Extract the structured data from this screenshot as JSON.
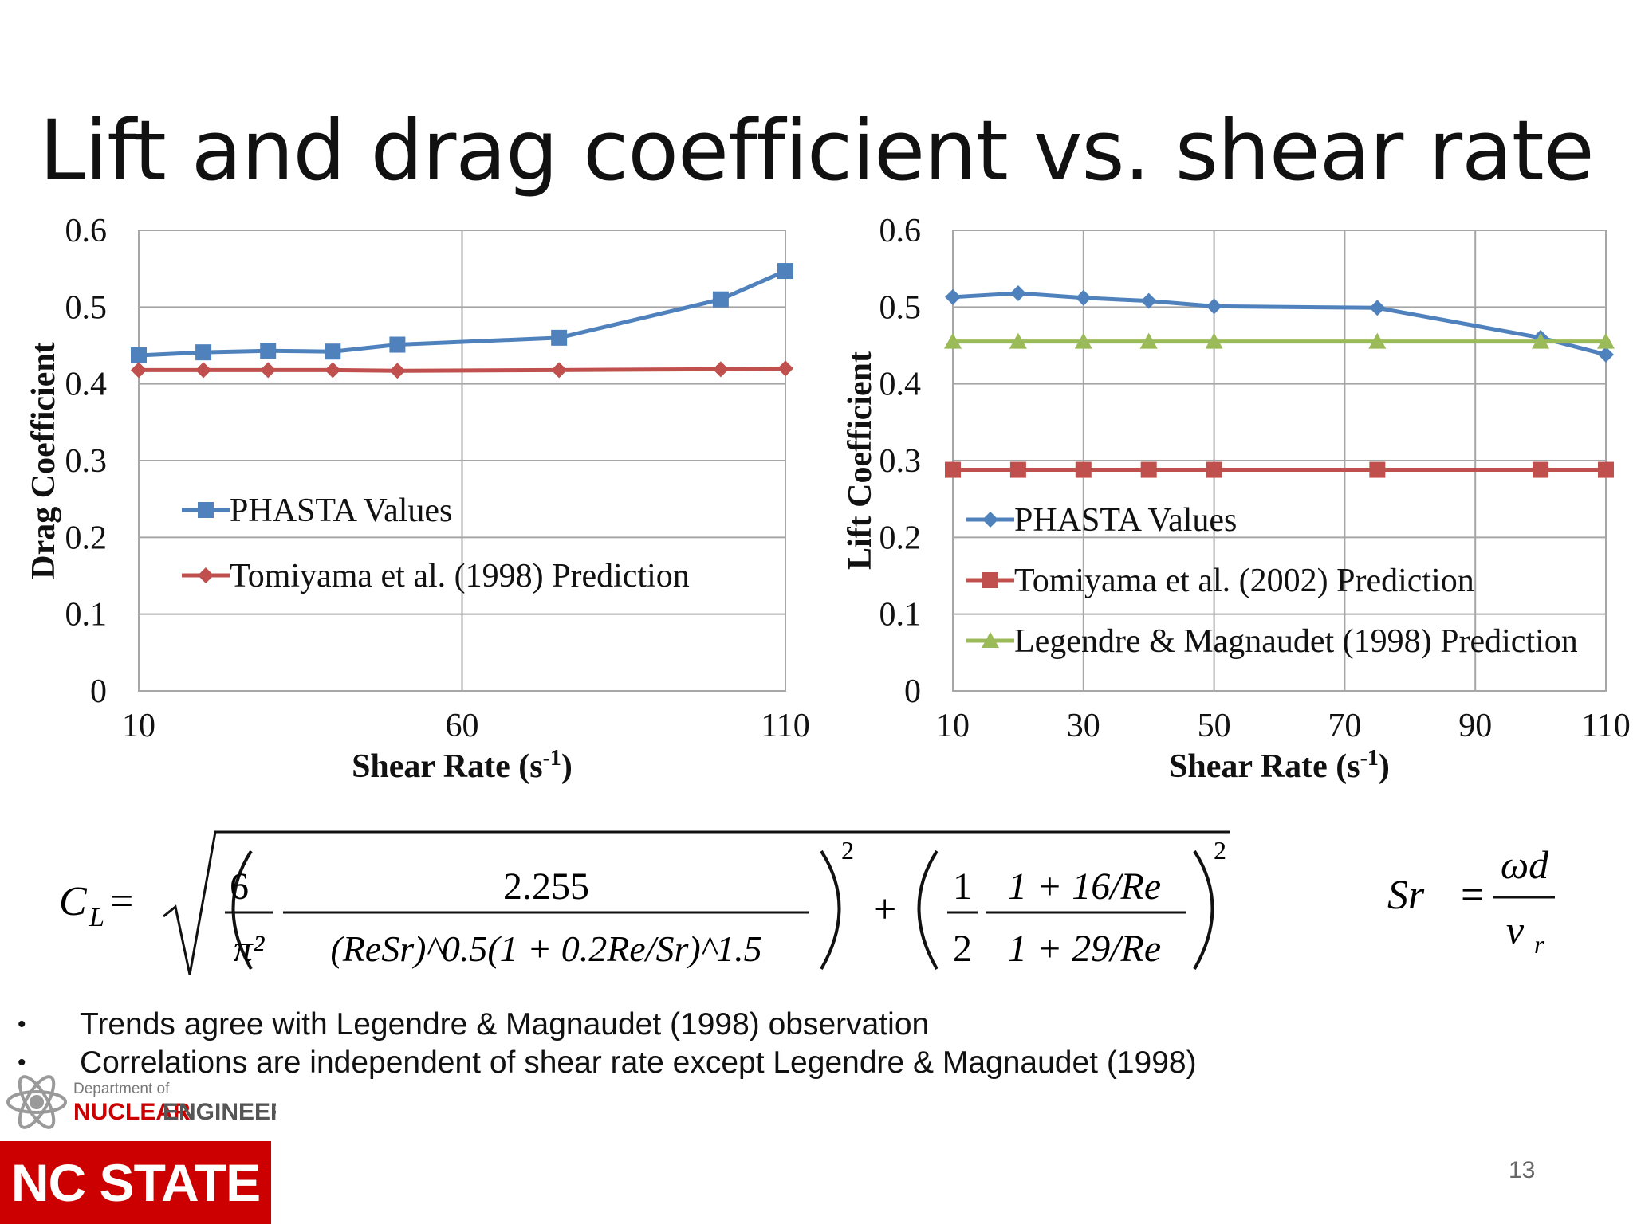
{
  "slide": {
    "title": "Lift and drag coefficient vs. shear rate",
    "page_number": "13",
    "bullets": [
      "Trends agree with Legendre & Magnaudet (1998) observation",
      "Correlations are independent of shear rate except Legendre & Magnaudet (1998)"
    ],
    "footer": {
      "department_line1": "Department of",
      "department_line2a": "NUCLEAR",
      "department_line2b": "ENGINEERING",
      "university": "NC STATE"
    },
    "formula": {
      "lhs": "C",
      "lhs_sub": "L",
      "term1_num_left": "6",
      "term1_den_left": "π²",
      "term1_num_right": "2.255",
      "term1_den_right": "(ReSr)^0.5(1 + 0.2Re/Sr)^1.5",
      "term2_num_left": "1",
      "term2_den_left": "2",
      "term2_num_right": "1 + 16/Re",
      "term2_den_right": "1 + 29/Re",
      "exponent": "2",
      "sr_lhs": "Sr",
      "sr_num": "ωd",
      "sr_den": "v",
      "sr_den_sub": "r"
    }
  },
  "chart_data": [
    {
      "type": "line",
      "xlabel": "Shear Rate (s-1)",
      "ylabel": "Drag Coefficient",
      "xlim": [
        10,
        110
      ],
      "ylim": [
        0,
        0.6
      ],
      "xticks": [
        10,
        60,
        110
      ],
      "yticks": [
        0,
        0.1,
        0.2,
        0.3,
        0.4,
        0.5,
        0.6
      ],
      "grid": true,
      "legend": "center-left",
      "series": [
        {
          "name": "PHASTA Values",
          "marker": "square",
          "color": "#4f81bd",
          "x": [
            10,
            20,
            30,
            40,
            50,
            75,
            100,
            110
          ],
          "y": [
            0.437,
            0.441,
            0.443,
            0.442,
            0.451,
            0.46,
            0.51,
            0.547
          ]
        },
        {
          "name": "Tomiyama et al. (1998) Prediction",
          "marker": "diamond",
          "color": "#c0504d",
          "x": [
            10,
            20,
            30,
            40,
            50,
            75,
            100,
            110
          ],
          "y": [
            0.418,
            0.418,
            0.418,
            0.418,
            0.417,
            0.418,
            0.419,
            0.42
          ]
        }
      ]
    },
    {
      "type": "line",
      "xlabel": "Shear Rate (s-1)",
      "ylabel": "Lift Coefficient",
      "xlim": [
        10,
        110
      ],
      "ylim": [
        0,
        0.6
      ],
      "xticks": [
        10,
        30,
        50,
        70,
        90,
        110
      ],
      "yticks": [
        0,
        0.1,
        0.2,
        0.3,
        0.4,
        0.5,
        0.6
      ],
      "grid": true,
      "legend": "bottom-left",
      "series": [
        {
          "name": "PHASTA Values",
          "marker": "diamond",
          "color": "#4f81bd",
          "x": [
            10,
            20,
            30,
            40,
            50,
            75,
            100,
            110
          ],
          "y": [
            0.513,
            0.518,
            0.512,
            0.508,
            0.501,
            0.499,
            0.46,
            0.438
          ]
        },
        {
          "name": "Tomiyama et al. (2002) Prediction",
          "marker": "square",
          "color": "#c0504d",
          "x": [
            10,
            20,
            30,
            40,
            50,
            75,
            100,
            110
          ],
          "y": [
            0.288,
            0.288,
            0.288,
            0.288,
            0.288,
            0.288,
            0.288,
            0.288
          ]
        },
        {
          "name": "Legendre & Magnaudet (1998) Prediction",
          "marker": "triangle",
          "color": "#9bbb59",
          "x": [
            10,
            20,
            30,
            40,
            50,
            75,
            100,
            110
          ],
          "y": [
            0.455,
            0.455,
            0.455,
            0.455,
            0.455,
            0.455,
            0.455,
            0.455
          ]
        }
      ]
    }
  ]
}
